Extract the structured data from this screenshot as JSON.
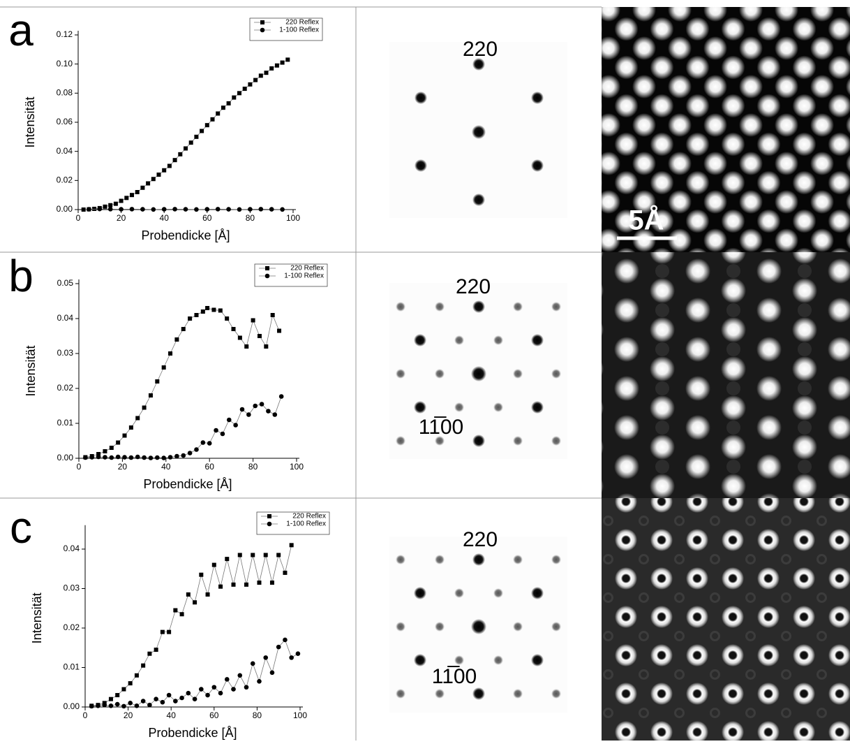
{
  "chart_data": [
    {
      "type": "line",
      "label": "a",
      "xlabel": "Probendicke [Å]",
      "ylabel": "Intensität",
      "xlim": [
        0,
        100
      ],
      "xticks": [
        0,
        20,
        40,
        60,
        80,
        100
      ],
      "ylim": [
        0,
        0.12
      ],
      "yticks": [
        {
          "value": 0,
          "label": "0.00"
        },
        0.02,
        0.04,
        0.06,
        0.08,
        {
          "value": 0.1,
          "label": "0.10"
        },
        0.12
      ],
      "legend": "upper right",
      "series": [
        {
          "name": "220 Reflex",
          "color": "#000000",
          "marker": "square",
          "x": [
            2.5,
            5,
            7.5,
            10,
            12.5,
            15,
            17.5,
            20,
            22.5,
            25,
            27.5,
            30,
            32.5,
            35,
            37.5,
            40,
            42.5,
            45,
            47.5,
            50,
            52.5,
            55,
            57.5,
            60,
            62.5,
            65,
            67.5,
            70,
            72.5,
            75,
            77.5,
            80,
            82.5,
            85,
            87.5,
            90,
            92.5,
            95,
            97.5
          ],
          "values": [
            0,
            0.0002,
            0.0005,
            0.001,
            0.002,
            0.003,
            0.004,
            0.006,
            0.008,
            0.01,
            0.012,
            0.015,
            0.018,
            0.021,
            0.024,
            0.027,
            0.03,
            0.034,
            0.038,
            0.042,
            0.046,
            0.05,
            0.054,
            0.058,
            0.062,
            0.066,
            0.07,
            0.073,
            0.077,
            0.08,
            0.083,
            0.086,
            0.089,
            0.092,
            0.094,
            0.097,
            0.099,
            0.101,
            0.103
          ]
        },
        {
          "name": "1-100 Reflex",
          "color": "#000000",
          "marker": "circle",
          "x": [
            5,
            10,
            15,
            20,
            25,
            30,
            35,
            40,
            45,
            50,
            55,
            60,
            65,
            70,
            75,
            80,
            85,
            90,
            95
          ],
          "values": [
            0.0002,
            0.0004,
            0.0003,
            0.0002,
            0.0003,
            0.0002,
            0.0001,
            0.0002,
            0.0003,
            0.0002,
            0.0001,
            0.0002,
            0.0003,
            0.0002,
            0.0001,
            0.0002,
            0.0003,
            0.0002,
            0.0001
          ]
        }
      ]
    },
    {
      "type": "line",
      "label": "b",
      "xlabel": "Probendicke [Å]",
      "ylabel": "Intensität",
      "xlim": [
        0,
        100
      ],
      "xticks": [
        0,
        20,
        40,
        60,
        80,
        100
      ],
      "ylim": [
        0,
        0.05
      ],
      "yticks": [
        {
          "value": 0,
          "label": "0.00"
        },
        0.01,
        0.02,
        0.03,
        0.04,
        0.05
      ],
      "legend": "upper right",
      "series": [
        {
          "name": "220 Reflex",
          "color": "#000000",
          "marker": "square",
          "x": [
            3,
            6,
            9,
            12,
            15,
            18,
            21,
            24,
            27,
            30,
            33,
            36,
            39,
            42,
            45,
            48,
            51,
            54,
            57,
            59,
            62,
            65,
            68,
            71,
            74,
            77,
            80,
            83,
            86,
            89,
            92
          ],
          "values": [
            0.0003,
            0.0006,
            0.0012,
            0.002,
            0.003,
            0.0045,
            0.0065,
            0.0088,
            0.0115,
            0.0145,
            0.018,
            0.022,
            0.026,
            0.03,
            0.034,
            0.037,
            0.04,
            0.041,
            0.042,
            0.043,
            0.0425,
            0.0423,
            0.04,
            0.037,
            0.0345,
            0.032,
            0.0395,
            0.035,
            0.032,
            0.041,
            0.0365
          ]
        },
        {
          "name": "1-100 Reflex",
          "color": "#000000",
          "marker": "circle",
          "x": [
            3,
            6,
            9,
            12,
            15,
            18,
            21,
            24,
            27,
            30,
            33,
            36,
            39,
            42,
            45,
            48,
            51,
            54,
            57,
            60,
            63,
            66,
            69,
            72,
            75,
            78,
            81,
            84,
            87,
            90,
            93
          ],
          "values": [
            0.0002,
            0.0003,
            0.0004,
            0.0003,
            0.0002,
            0.0004,
            0.0003,
            0.0002,
            0.0004,
            0.0002,
            0.0001,
            0.0002,
            0.0001,
            0.0003,
            0.0006,
            0.0008,
            0.0015,
            0.0025,
            0.0045,
            0.0043,
            0.008,
            0.007,
            0.011,
            0.0095,
            0.014,
            0.0125,
            0.015,
            0.0155,
            0.0135,
            0.0125,
            0.0177
          ]
        }
      ]
    },
    {
      "type": "line",
      "label": "c",
      "xlabel": "Probendicke [Å]",
      "ylabel": "Intensität",
      "xlim": [
        0,
        100
      ],
      "xticks": [
        0,
        20,
        40,
        60,
        80,
        100
      ],
      "ylim": [
        0,
        0.045
      ],
      "yticks": [
        {
          "value": 0,
          "label": "0.00"
        },
        0.01,
        0.02,
        0.03,
        0.04
      ],
      "legend": "upper right",
      "series": [
        {
          "name": "220 Reflex",
          "color": "#000000",
          "marker": "square",
          "x": [
            3,
            6,
            9,
            12,
            15,
            18,
            21,
            24,
            27,
            30,
            33,
            36,
            39,
            42,
            45,
            48,
            51,
            54,
            57,
            60,
            63,
            66,
            69,
            72,
            75,
            78,
            81,
            84,
            87,
            90,
            93,
            96
          ],
          "values": [
            0.0003,
            0.0005,
            0.001,
            0.002,
            0.003,
            0.0045,
            0.006,
            0.008,
            0.0105,
            0.0135,
            0.0145,
            0.019,
            0.019,
            0.0245,
            0.0235,
            0.0285,
            0.0265,
            0.0335,
            0.0285,
            0.036,
            0.0305,
            0.0375,
            0.031,
            0.0385,
            0.031,
            0.0385,
            0.0315,
            0.0385,
            0.0315,
            0.0385,
            0.034,
            0.041
          ]
        },
        {
          "name": "1-100 Reflex",
          "color": "#000000",
          "marker": "circle",
          "x": [
            3,
            6,
            9,
            12,
            15,
            18,
            21,
            24,
            27,
            30,
            33,
            36,
            39,
            42,
            45,
            48,
            51,
            54,
            57,
            60,
            63,
            66,
            69,
            72,
            75,
            78,
            81,
            84,
            87,
            90,
            93,
            96,
            99
          ],
          "values": [
            0.0002,
            0.0003,
            0.0005,
            0.0003,
            0.0007,
            0.0002,
            0.001,
            0.0003,
            0.0015,
            0.0005,
            0.002,
            0.0012,
            0.003,
            0.0015,
            0.0023,
            0.0035,
            0.002,
            0.0045,
            0.003,
            0.005,
            0.0035,
            0.007,
            0.0045,
            0.008,
            0.005,
            0.011,
            0.0065,
            0.0125,
            0.0087,
            0.0152,
            0.017,
            0.0125,
            0.0135
          ]
        }
      ]
    }
  ],
  "diffraction": [
    {
      "labels": [
        "220"
      ]
    },
    {
      "labels": [
        "220",
        "11̅00"
      ]
    },
    {
      "labels": [
        "220",
        "11̅00"
      ]
    }
  ],
  "scale_bar": "5Å"
}
